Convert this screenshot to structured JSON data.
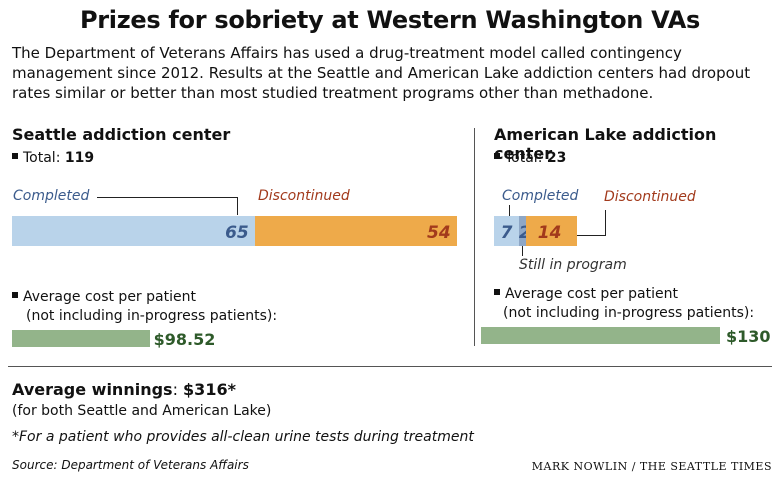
{
  "title": "Prizes for sobriety at Western Washington VAs",
  "intro": "The Department of Veterans Affairs has used a drug-treatment model called contingency management since 2012. Results at the Seattle and American Lake addiction centers had dropout rates similar or better than most studied treatment programs other than methadone.",
  "seattle": {
    "name": "Seattle addiction center",
    "total_label": "Total:",
    "total": "119",
    "completed_label": "Completed",
    "discontinued_label": "Discontinued",
    "cost_label_1": "Average cost per patient",
    "cost_label_2": "(not including in-progress patients):",
    "cost": "$98.52"
  },
  "american_lake": {
    "name": "American Lake addiction center",
    "total_label": "Total:",
    "total": "23",
    "completed_label": "Completed",
    "discontinued_label": "Discontinued",
    "still_label": "Still in program",
    "cost_label_1": "Average cost per patient",
    "cost_label_2": "(not including in-progress patients):",
    "cost": "$130"
  },
  "winnings": {
    "label": "Average winnings",
    "value": "$316*",
    "note": "(for both Seattle and American Lake)",
    "footnote": "*For a patient who provides all-clean urine tests during treatment"
  },
  "source": "Source: Department of Veterans Affairs",
  "credit": "MARK NOWLIN / THE SEATTLE TIMES",
  "colors": {
    "completed": "#b9d3ea",
    "discontinued": "#eeaa4a",
    "still": "#8ea7c6",
    "cost": "#93b48a"
  },
  "chart_data": [
    {
      "type": "bar",
      "title": "Seattle addiction center",
      "orientation": "stacked-horizontal",
      "series": [
        {
          "name": "Completed",
          "values": [
            65
          ]
        },
        {
          "name": "Discontinued",
          "values": [
            54
          ]
        }
      ],
      "total": 119
    },
    {
      "type": "bar",
      "title": "American Lake addiction center",
      "orientation": "stacked-horizontal",
      "series": [
        {
          "name": "Completed",
          "values": [
            7
          ]
        },
        {
          "name": "Still in program",
          "values": [
            2
          ]
        },
        {
          "name": "Discontinued",
          "values": [
            14
          ]
        }
      ],
      "total": 23
    },
    {
      "type": "bar",
      "title": "Average cost per patient",
      "categories": [
        "Seattle",
        "American Lake"
      ],
      "values": [
        98.52,
        130
      ],
      "labels": [
        "$98.52",
        "$130"
      ]
    }
  ]
}
